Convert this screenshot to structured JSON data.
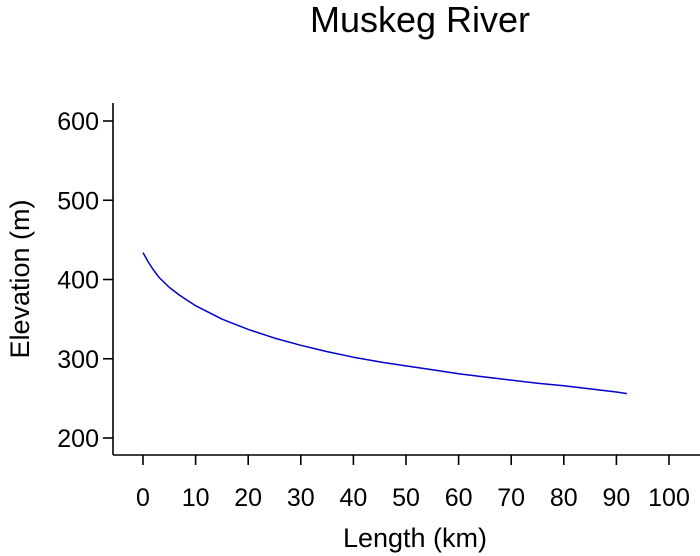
{
  "chart_data": {
    "type": "line",
    "title": "Muskeg River",
    "xlabel": "Length (km)",
    "ylabel": "Elevation (m)",
    "xlim": [
      0,
      100
    ],
    "ylim": [
      200,
      600
    ],
    "x_ticks": [
      "0",
      "10",
      "20",
      "30",
      "40",
      "50",
      "60",
      "70",
      "80",
      "90",
      "100"
    ],
    "y_ticks": [
      "200",
      "300",
      "400",
      "500",
      "600"
    ],
    "grid": false,
    "legend": "none",
    "series": [
      {
        "color": "#0000cc",
        "x": [
          0,
          1,
          2,
          3,
          5,
          7,
          10,
          15,
          20,
          25,
          30,
          35,
          40,
          45,
          50,
          55,
          60,
          65,
          70,
          75,
          80,
          85,
          90,
          92
        ],
        "y": [
          434,
          422,
          412,
          403,
          390,
          380,
          367,
          350,
          337,
          326,
          317,
          309,
          302,
          296,
          291,
          286,
          281,
          277,
          273,
          269,
          266,
          262,
          258,
          256
        ]
      }
    ]
  }
}
